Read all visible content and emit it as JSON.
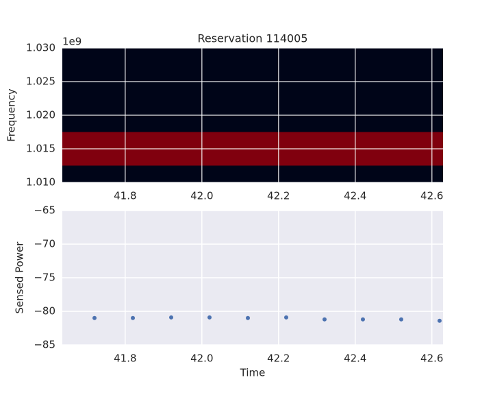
{
  "chart_data": [
    {
      "type": "band",
      "title": "Reservation 114005",
      "ylabel": "Frequency",
      "y_offset_label": "1e9",
      "background": "#000518",
      "grid": true,
      "bands": [
        {
          "ymin": 1.0125,
          "ymax": 1.0175,
          "color": "#80000e"
        }
      ],
      "xlim": [
        41.636,
        42.629
      ],
      "xticks": [
        41.8,
        {
          "value": 42,
          "label": "42.0"
        },
        42.2,
        42.4,
        42.6
      ],
      "ylim": [
        1.01,
        1.03
      ],
      "yticks": [
        {
          "value": 1.01,
          "label": "1.010"
        },
        {
          "value": 1.015,
          "label": "1.015"
        },
        {
          "value": 1.02,
          "label": "1.020"
        },
        {
          "value": 1.025,
          "label": "1.025"
        },
        {
          "value": 1.03,
          "label": "1.030"
        }
      ]
    },
    {
      "type": "scatter",
      "xlabel": "Time",
      "ylabel": "Sensed Power",
      "background": "#eaeaf2",
      "grid": true,
      "color": "#4c72b0",
      "x": [
        41.72,
        41.82,
        41.92,
        42.02,
        42.12,
        42.22,
        42.32,
        42.42,
        42.52,
        42.62
      ],
      "values": [
        -81.0,
        -81.0,
        -80.9,
        -80.9,
        -81.0,
        -80.9,
        -81.2,
        -81.2,
        -81.2,
        -81.4
      ],
      "xlim": [
        41.636,
        42.629
      ],
      "xticks": [
        41.8,
        {
          "value": 42,
          "label": "42.0"
        },
        42.2,
        42.4,
        42.6
      ],
      "ylim": [
        -85,
        -65
      ],
      "yticks": [
        {
          "value": -85,
          "label": "−85"
        },
        {
          "value": -80,
          "label": "−80"
        },
        {
          "value": -75,
          "label": "−75"
        },
        {
          "value": -70,
          "label": "−70"
        },
        {
          "value": -65,
          "label": "−65"
        }
      ]
    }
  ]
}
